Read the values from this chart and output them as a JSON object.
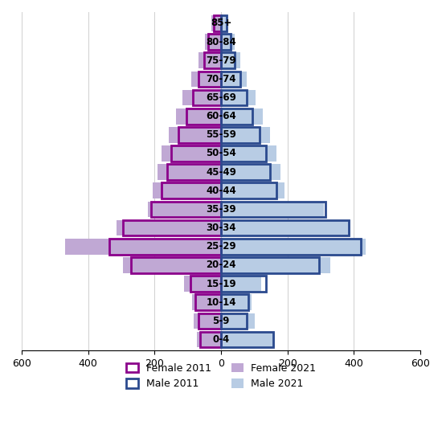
{
  "age_groups": [
    "85+",
    "80-84",
    "75-79",
    "70-74",
    "65-69",
    "60-64",
    "55-59",
    "50-54",
    "45-49",
    "40-44",
    "35-39",
    "30-34",
    "25-29",
    "20-24",
    "15-19",
    "10-14",
    "5-9",
    "0-4"
  ],
  "female_2011": [
    22,
    38,
    52,
    68,
    85,
    105,
    128,
    150,
    162,
    180,
    210,
    295,
    335,
    270,
    92,
    78,
    68,
    62
  ],
  "male_2011": [
    18,
    28,
    42,
    58,
    78,
    95,
    115,
    135,
    148,
    168,
    315,
    385,
    420,
    295,
    135,
    82,
    78,
    158
  ],
  "female_2021": [
    28,
    48,
    68,
    90,
    115,
    135,
    158,
    178,
    190,
    205,
    220,
    315,
    470,
    295,
    112,
    88,
    82,
    72
  ],
  "male_2021": [
    22,
    42,
    58,
    78,
    105,
    125,
    148,
    168,
    178,
    190,
    310,
    390,
    435,
    330,
    122,
    92,
    102,
    162
  ],
  "female_2011_color": "#8B008B",
  "female_2021_color": "#C0A8D4",
  "male_2011_color": "#2B4A8E",
  "male_2021_color": "#B8CCE4",
  "xlim": 600,
  "background_color": "#ffffff",
  "bar_height": 0.85
}
